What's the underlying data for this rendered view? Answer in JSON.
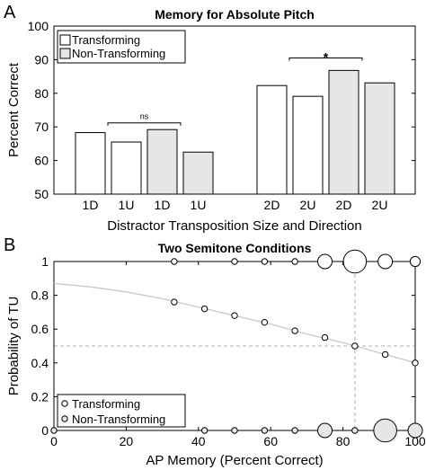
{
  "figure": {
    "panel_labels": [
      "A",
      "B"
    ]
  },
  "colors": {
    "transforming": "#ffffff",
    "non_transforming": "#e6e6e6",
    "fit_line": "#c8c8c8",
    "guide": "#b0b0b0"
  },
  "chart_data": [
    {
      "type": "bar",
      "title": "Memory for Absolute Pitch",
      "xlabel": "Distractor Transposition Size and Direction",
      "ylabel": "Percent Correct",
      "ylim": [
        50,
        100
      ],
      "yticks": [
        50,
        60,
        70,
        80,
        90,
        100
      ],
      "categories": [
        "1D",
        "1U",
        "1D",
        "1U",
        "2D",
        "2U",
        "2D",
        "2U"
      ],
      "values": [
        68.3,
        65.5,
        69.2,
        62.5,
        82.3,
        79.1,
        86.8,
        83.1
      ],
      "conditions": [
        "Transforming",
        "Transforming",
        "Non-Transforming",
        "Non-Transforming",
        "Transforming",
        "Transforming",
        "Non-Transforming",
        "Non-Transforming"
      ],
      "legend": {
        "position": "top-left",
        "entries": [
          "Transforming",
          "Non-Transforming"
        ]
      },
      "annotations": [
        {
          "text": "ns",
          "from_bar": 1,
          "to_bar": 2,
          "y": 71.2
        },
        {
          "text": "*",
          "from_bar": 5,
          "to_bar": 6,
          "y": 90.5
        }
      ]
    },
    {
      "type": "scatter",
      "title": "Two Semitone Conditions",
      "xlabel": "AP Memory (Percent Correct)",
      "ylabel": "Probability of TU",
      "xlim": [
        0,
        100
      ],
      "ylim": [
        0,
        1
      ],
      "xticks": [
        0,
        20,
        40,
        60,
        80,
        100
      ],
      "yticks": [
        0,
        0.2,
        0.4,
        0.6,
        0.8,
        1
      ],
      "ytick_labels": [
        "0",
        "0.2",
        "0.4",
        "0.6",
        "0.8",
        "1"
      ],
      "legend": {
        "position": "bottom-left",
        "entries": [
          "Transforming",
          "Non-Transforming"
        ]
      },
      "fit_curve": {
        "x": [
          0,
          10,
          20,
          30,
          40,
          50,
          60,
          70,
          80,
          90,
          100
        ],
        "y": [
          0.87,
          0.85,
          0.82,
          0.78,
          0.73,
          0.68,
          0.63,
          0.57,
          0.52,
          0.46,
          0.4
        ]
      },
      "fit_points": {
        "x": [
          33.3,
          41.7,
          50,
          58.3,
          66.7,
          75,
          83.3,
          91.7,
          100
        ],
        "y": [
          0.76,
          0.72,
          0.68,
          0.64,
          0.59,
          0.55,
          0.5,
          0.45,
          0.4
        ]
      },
      "guide": {
        "x": 83.3,
        "y": 0.5
      },
      "top_points": {
        "x": [
          33.3,
          50,
          58.3,
          66.7,
          75,
          83.3,
          91.7,
          100
        ],
        "count": [
          1,
          1,
          1,
          1,
          3,
          5,
          3,
          2
        ]
      },
      "bottom_points": {
        "x": [
          0,
          41.7,
          50,
          58.3,
          66.7,
          75,
          83.3,
          91.7,
          100
        ],
        "count": [
          1,
          1,
          1,
          1,
          1,
          3,
          1,
          5,
          3
        ]
      }
    }
  ]
}
